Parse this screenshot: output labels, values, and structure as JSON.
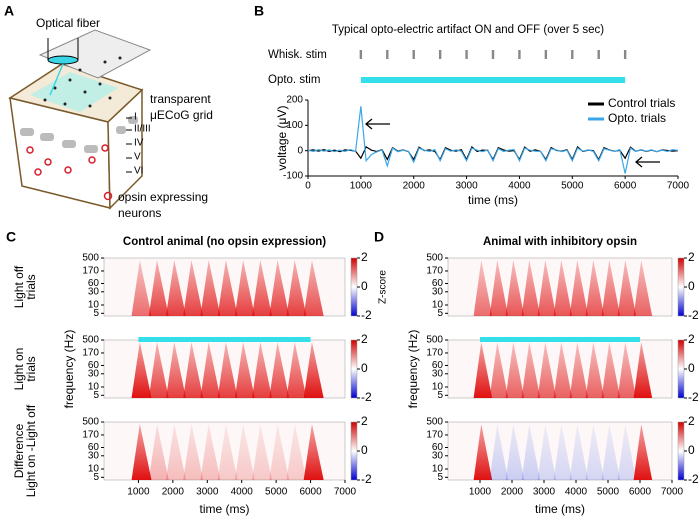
{
  "panel_a": {
    "letter": "A",
    "fiber": "Optical fiber",
    "grid": [
      "transparent",
      "μECoG grid"
    ],
    "layers": [
      "I",
      "II/III",
      "IV",
      "V",
      "VI"
    ],
    "neurons": [
      "opsin expressing",
      "neurons"
    ]
  },
  "panel_b": {
    "letter": "B",
    "type": "line",
    "title": "Typical opto-electric artifact ON and OFF (over 5 sec)",
    "whisk_label": "Whisk. stim",
    "opto_label": "Opto. stim",
    "whisk_stim_times": [
      1000,
      1500,
      2000,
      2500,
      3000,
      3500,
      4000,
      4500,
      5000,
      5500,
      6000
    ],
    "opto_stim": [
      1000,
      6000
    ],
    "opto_color": "#33e0ea",
    "x": [
      0,
      100,
      200,
      300,
      400,
      500,
      600,
      700,
      800,
      900,
      1000,
      1100,
      1200,
      1300,
      1400,
      1500,
      1600,
      1700,
      1800,
      1900,
      2000,
      2100,
      2200,
      2300,
      2400,
      2500,
      2600,
      2700,
      2800,
      2900,
      3000,
      3100,
      3200,
      3300,
      3400,
      3500,
      3600,
      3700,
      3800,
      3900,
      4000,
      4100,
      4200,
      4300,
      4400,
      4500,
      4600,
      4700,
      4800,
      4900,
      5000,
      5100,
      5200,
      5300,
      5400,
      5500,
      5600,
      5700,
      5800,
      5900,
      6000,
      6100,
      6200,
      6300,
      6400,
      6500,
      6600,
      6700,
      6800,
      6900,
      7000
    ],
    "series": [
      {
        "name": "Control trials",
        "color": "#000000",
        "values": [
          0,
          3,
          -2,
          4,
          -3,
          2,
          -4,
          3,
          1,
          -2,
          -30,
          15,
          2,
          -3,
          4,
          -35,
          12,
          -2,
          3,
          -4,
          -35,
          14,
          0,
          3,
          -3,
          -35,
          12,
          2,
          -2,
          4,
          -35,
          15,
          -3,
          2,
          1,
          -35,
          12,
          3,
          -2,
          0,
          -35,
          14,
          -2,
          3,
          -3,
          -35,
          12,
          1,
          -2,
          4,
          -35,
          15,
          -3,
          2,
          0,
          -35,
          12,
          3,
          -2,
          1,
          -30,
          14,
          -2,
          3,
          -3,
          2,
          -4,
          3,
          1,
          -2,
          0
        ]
      },
      {
        "name": "Opto. trials",
        "color": "#3aa6e8",
        "values": [
          2,
          -3,
          4,
          -2,
          3,
          -4,
          2,
          -3,
          4,
          -2,
          175,
          -40,
          -15,
          -5,
          3,
          -60,
          10,
          -4,
          2,
          -3,
          -45,
          10,
          2,
          -3,
          4,
          -40,
          8,
          -2,
          3,
          -2,
          -40,
          10,
          2,
          -4,
          3,
          -40,
          8,
          -3,
          2,
          4,
          -40,
          10,
          2,
          -2,
          -3,
          -40,
          8,
          3,
          -4,
          2,
          -40,
          10,
          -2,
          3,
          -3,
          -40,
          8,
          2,
          -3,
          4,
          -90,
          10,
          -3,
          4,
          -2,
          3,
          -4,
          2,
          -3,
          4,
          1
        ]
      }
    ],
    "xlim": [
      0,
      7000
    ],
    "xticks": [
      0,
      1000,
      2000,
      3000,
      4000,
      5000,
      6000,
      7000
    ],
    "ylim": [
      -100,
      200
    ],
    "yticks": [
      -100,
      0,
      100,
      200
    ],
    "xlabel": "time (ms)",
    "ylabel": "voltage (μV)",
    "legend": "upper right"
  },
  "panel_c": {
    "letter": "C",
    "type": "heatmap",
    "title": "Control animal (no opsin expression)",
    "row_labels": [
      [
        "Light off",
        "trials"
      ],
      [
        "Light on",
        "trials"
      ],
      [
        "Difference",
        "Light on -Light off"
      ]
    ],
    "rows": [
      {
        "light_on": false,
        "peaks": [
          1.2,
          1.6,
          1.6,
          1.6,
          1.6,
          1.6,
          1.6,
          1.6,
          1.6,
          1.6,
          1.5
        ]
      },
      {
        "light_on": true,
        "peaks": [
          2,
          1.6,
          1.6,
          1.6,
          1.6,
          1.6,
          1.6,
          1.6,
          1.6,
          1.6,
          2
        ]
      },
      {
        "light_on": false,
        "peaks": [
          2,
          0.6,
          0.5,
          0.5,
          0.5,
          0.4,
          0.4,
          0.4,
          0.4,
          0.4,
          2
        ]
      }
    ],
    "ylim": [
      4,
      500
    ],
    "yticks": [
      5,
      10,
      30,
      60,
      170,
      500
    ],
    "log_y": true,
    "xlim": [
      0,
      7000
    ],
    "xticks": [
      1000,
      2000,
      3000,
      4000,
      5000,
      6000,
      7000
    ],
    "xlabel": "time (ms)",
    "ylabel": "frequency (Hz)",
    "clim": [
      -2,
      2
    ],
    "cticks": [
      2,
      0,
      -2
    ],
    "clabel": "Z-score"
  },
  "panel_d": {
    "letter": "D",
    "type": "heatmap",
    "title": "Animal with inhibitory opsin",
    "rows": [
      {
        "light_on": false,
        "peaks": [
          1.2,
          1.4,
          1.4,
          1.4,
          1.4,
          1.4,
          1.4,
          1.4,
          1.4,
          1.4,
          1.3
        ]
      },
      {
        "light_on": true,
        "peaks": [
          2,
          1.3,
          1.3,
          1.3,
          1.3,
          1.3,
          1.3,
          1.3,
          1.3,
          1.3,
          2
        ]
      },
      {
        "light_on": false,
        "peaks": [
          2,
          -0.5,
          -0.5,
          -0.5,
          -0.4,
          -0.4,
          -0.4,
          -0.4,
          -0.4,
          -0.4,
          2
        ]
      }
    ],
    "ylim": [
      4,
      500
    ],
    "yticks": [
      5,
      10,
      30,
      60,
      170,
      500
    ],
    "log_y": true,
    "xlim": [
      0,
      7000
    ],
    "xticks": [
      1000,
      2000,
      3000,
      4000,
      5000,
      6000,
      7000
    ],
    "xlabel": "time (ms)",
    "ylabel": "frequency (Hz)",
    "clim": [
      -2,
      2
    ],
    "cticks": [
      2,
      0,
      -2
    ]
  }
}
